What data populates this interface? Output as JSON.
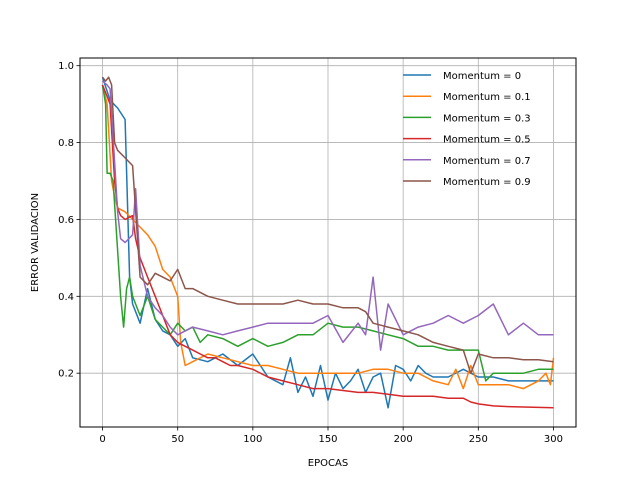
{
  "chart_data": {
    "type": "line",
    "title": "",
    "xlabel": "EPOCAS",
    "ylabel": "ERROR VALIDACION",
    "xlim": [
      -15,
      315
    ],
    "ylim": [
      0.06,
      1.02
    ],
    "xticks": [
      0,
      50,
      100,
      150,
      200,
      250,
      300
    ],
    "yticks": [
      0.2,
      0.4,
      0.6,
      0.8,
      1.0
    ],
    "xtick_labels": [
      "0",
      "50",
      "100",
      "150",
      "200",
      "250",
      "300"
    ],
    "ytick_labels": [
      "0.2",
      "0.4",
      "0.6",
      "0.8",
      "1.0"
    ],
    "grid": true,
    "legend_position": "upper-right",
    "series": [
      {
        "name": "Momentum = 0",
        "color": "#1f77b4",
        "x": [
          0,
          5,
          10,
          15,
          18,
          20,
          25,
          30,
          35,
          40,
          45,
          50,
          55,
          60,
          70,
          80,
          90,
          100,
          110,
          120,
          125,
          130,
          135,
          140,
          145,
          150,
          155,
          160,
          165,
          170,
          175,
          180,
          185,
          190,
          195,
          200,
          205,
          210,
          215,
          220,
          230,
          240,
          250,
          260,
          270,
          280,
          290,
          300
        ],
        "y": [
          0.97,
          0.91,
          0.89,
          0.86,
          0.45,
          0.38,
          0.33,
          0.42,
          0.34,
          0.31,
          0.3,
          0.27,
          0.29,
          0.24,
          0.23,
          0.25,
          0.22,
          0.25,
          0.19,
          0.17,
          0.24,
          0.15,
          0.19,
          0.14,
          0.22,
          0.13,
          0.2,
          0.16,
          0.18,
          0.21,
          0.15,
          0.19,
          0.2,
          0.11,
          0.22,
          0.21,
          0.18,
          0.22,
          0.2,
          0.19,
          0.19,
          0.21,
          0.19,
          0.19,
          0.18,
          0.18,
          0.18,
          0.18
        ]
      },
      {
        "name": "Momentum = 0.1",
        "color": "#ff7f0e",
        "x": [
          0,
          3,
          6,
          8,
          10,
          15,
          20,
          25,
          30,
          35,
          40,
          45,
          50,
          52,
          55,
          60,
          70,
          80,
          90,
          100,
          110,
          120,
          130,
          140,
          150,
          160,
          170,
          180,
          190,
          200,
          210,
          220,
          230,
          235,
          240,
          245,
          250,
          260,
          270,
          280,
          290,
          295,
          298,
          300
        ],
        "y": [
          0.95,
          0.9,
          0.7,
          0.66,
          0.63,
          0.62,
          0.6,
          0.58,
          0.56,
          0.53,
          0.47,
          0.45,
          0.4,
          0.28,
          0.22,
          0.23,
          0.25,
          0.24,
          0.23,
          0.22,
          0.22,
          0.21,
          0.2,
          0.2,
          0.2,
          0.2,
          0.2,
          0.21,
          0.21,
          0.2,
          0.2,
          0.18,
          0.17,
          0.21,
          0.16,
          0.22,
          0.17,
          0.17,
          0.17,
          0.16,
          0.18,
          0.2,
          0.17,
          0.24
        ]
      },
      {
        "name": "Momentum = 0.3",
        "color": "#2ca02c",
        "x": [
          0,
          2,
          3,
          5,
          7,
          10,
          12,
          14,
          16,
          18,
          20,
          22,
          25,
          30,
          35,
          40,
          45,
          50,
          55,
          60,
          65,
          70,
          80,
          90,
          100,
          110,
          120,
          130,
          140,
          150,
          160,
          170,
          180,
          190,
          200,
          210,
          220,
          230,
          240,
          250,
          255,
          260,
          270,
          280,
          290,
          300
        ],
        "y": [
          0.95,
          0.9,
          0.72,
          0.72,
          0.7,
          0.52,
          0.4,
          0.32,
          0.42,
          0.45,
          0.4,
          0.38,
          0.35,
          0.4,
          0.34,
          0.32,
          0.3,
          0.33,
          0.31,
          0.32,
          0.28,
          0.3,
          0.29,
          0.27,
          0.29,
          0.27,
          0.28,
          0.3,
          0.3,
          0.33,
          0.32,
          0.32,
          0.31,
          0.3,
          0.29,
          0.27,
          0.27,
          0.26,
          0.26,
          0.26,
          0.18,
          0.2,
          0.2,
          0.2,
          0.21,
          0.21
        ]
      },
      {
        "name": "Momentum = 0.5",
        "color": "#d62728",
        "x": [
          0,
          3,
          5,
          8,
          10,
          12,
          15,
          20,
          22,
          25,
          30,
          35,
          40,
          45,
          50,
          55,
          60,
          65,
          70,
          75,
          80,
          85,
          90,
          100,
          110,
          120,
          130,
          140,
          150,
          160,
          170,
          180,
          190,
          200,
          210,
          220,
          230,
          240,
          245,
          250,
          260,
          270,
          280,
          290,
          300
        ],
        "y": [
          0.95,
          0.92,
          0.9,
          0.7,
          0.63,
          0.61,
          0.6,
          0.61,
          0.55,
          0.5,
          0.45,
          0.4,
          0.35,
          0.3,
          0.28,
          0.27,
          0.26,
          0.25,
          0.24,
          0.24,
          0.23,
          0.22,
          0.22,
          0.21,
          0.19,
          0.18,
          0.17,
          0.16,
          0.16,
          0.155,
          0.15,
          0.15,
          0.145,
          0.14,
          0.14,
          0.14,
          0.135,
          0.135,
          0.125,
          0.12,
          0.115,
          0.113,
          0.112,
          0.111,
          0.11
        ]
      },
      {
        "name": "Momentum = 0.7",
        "color": "#9467bd",
        "x": [
          0,
          3,
          5,
          8,
          10,
          12,
          15,
          20,
          22,
          25,
          30,
          35,
          40,
          45,
          50,
          60,
          70,
          80,
          90,
          100,
          110,
          120,
          130,
          140,
          150,
          160,
          170,
          175,
          180,
          185,
          190,
          200,
          210,
          220,
          230,
          240,
          250,
          260,
          270,
          280,
          290,
          300
        ],
        "y": [
          0.96,
          0.95,
          0.94,
          0.75,
          0.62,
          0.55,
          0.54,
          0.56,
          0.68,
          0.48,
          0.4,
          0.37,
          0.35,
          0.32,
          0.3,
          0.32,
          0.31,
          0.3,
          0.31,
          0.32,
          0.33,
          0.33,
          0.33,
          0.33,
          0.35,
          0.28,
          0.33,
          0.3,
          0.45,
          0.26,
          0.38,
          0.3,
          0.32,
          0.33,
          0.35,
          0.33,
          0.35,
          0.38,
          0.3,
          0.33,
          0.3,
          0.3
        ]
      },
      {
        "name": "Momentum = 0.9",
        "color": "#8c564b",
        "x": [
          0,
          2,
          4,
          6,
          8,
          10,
          15,
          20,
          25,
          30,
          35,
          40,
          45,
          50,
          55,
          60,
          70,
          80,
          90,
          100,
          110,
          120,
          130,
          140,
          150,
          160,
          170,
          175,
          180,
          190,
          200,
          210,
          220,
          230,
          240,
          245,
          250,
          260,
          270,
          280,
          290,
          300
        ],
        "y": [
          0.97,
          0.96,
          0.97,
          0.95,
          0.8,
          0.78,
          0.76,
          0.74,
          0.45,
          0.43,
          0.46,
          0.45,
          0.44,
          0.47,
          0.42,
          0.42,
          0.4,
          0.39,
          0.38,
          0.38,
          0.38,
          0.38,
          0.39,
          0.38,
          0.38,
          0.37,
          0.37,
          0.36,
          0.33,
          0.32,
          0.31,
          0.3,
          0.28,
          0.27,
          0.26,
          0.2,
          0.25,
          0.24,
          0.24,
          0.235,
          0.235,
          0.23
        ]
      }
    ]
  }
}
